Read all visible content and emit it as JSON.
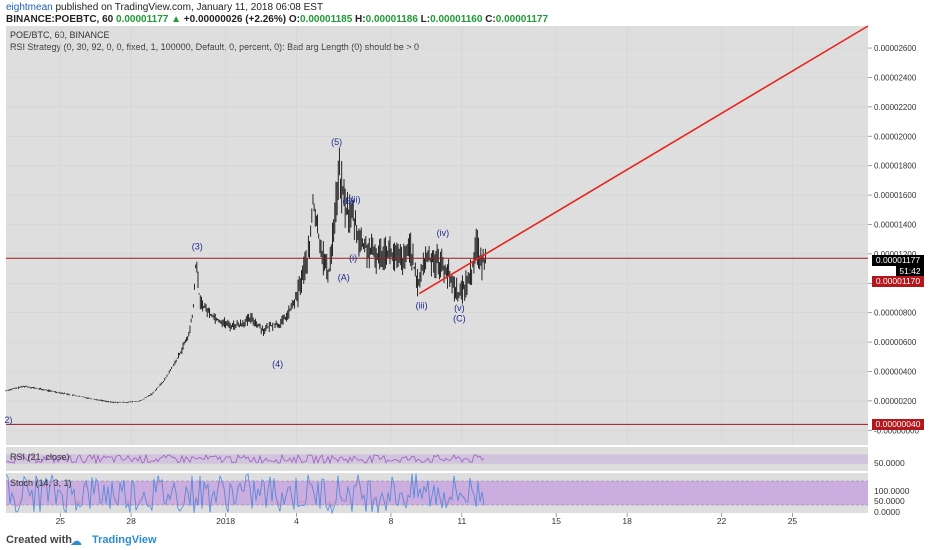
{
  "header": {
    "author": "eightmean",
    "published_text": "published on TradingView.com, January 11, 2018 06:08 EST",
    "symbol": "BINANCE:POEBTC, 60",
    "last": "0.00001177",
    "change_arrow": "▲",
    "change": "+0.00000026 (+2.26%)",
    "open_label": "O:",
    "open": "0.00001185",
    "high_label": "H:",
    "high": "0.00001186",
    "low_label": "L:",
    "low": "0.00001160",
    "close_label": "C:",
    "close": "0.00001177"
  },
  "chart_info": {
    "title": "POE/BTC, 60, BINANCE",
    "strategy_error": "RSI Strategy (0, 30, 92, 0, 0, fixed, 1, 100000, Default, 0, percent, 0): Bad arg Length (0) should be > 0"
  },
  "price_badges": {
    "current": "0.00001177",
    "countdown": "51:42",
    "level_upper": "0.00001170",
    "level_lower": "0.00000040"
  },
  "indicators": {
    "rsi_label": "RSI (21, close)",
    "rsi_tick": "50.0000",
    "stoch_label": "Stoch (14, 3, 1)",
    "stoch_ticks": [
      "100.0000",
      "50.0000",
      "0.0000"
    ]
  },
  "footer": {
    "created": "Created with",
    "brand": "TradingView"
  },
  "colors": {
    "panel_bg": "#dedede",
    "trendline": "#e8241c",
    "wave_label": "#1f2a8c",
    "rsi_band": "#cfc2dd",
    "stoch_band": "#c9a8df",
    "rsi_line": "#9f5cc0",
    "stoch_k": "#4a8de0",
    "stoch_d": "#e08bb8"
  },
  "chart_data": {
    "type": "candlestick",
    "title": "POE/BTC, 60, BINANCE",
    "x_tick_labels": [
      "25",
      "28",
      "2018",
      "4",
      "8",
      "11",
      "15",
      "18",
      "22",
      "25"
    ],
    "y_tick_labels": [
      "0.00002600",
      "0.00002400",
      "0.00002200",
      "0.00002000",
      "0.00001800",
      "0.00001600",
      "0.00001400",
      "0.00001200",
      "0.00001000",
      "0.00000800",
      "0.00000600",
      "0.00000400",
      "0.00000200",
      "-0.00000000"
    ],
    "y_ticks": [
      2.6e-05,
      2.4e-05,
      2.2e-05,
      2e-05,
      1.8e-05,
      1.6e-05,
      1.4e-05,
      1.2e-05,
      1e-05,
      8e-06,
      6e-06,
      4e-06,
      2e-06,
      0
    ],
    "x_tick_days": [
      -7,
      -4,
      0,
      3,
      7,
      10,
      14,
      17,
      21,
      24
    ],
    "xlim_days": [
      -9.3,
      27.2
    ],
    "ylim": [
      -1e-06,
      2.75e-05
    ],
    "price_series": {
      "days": [
        -9.3,
        -8.5,
        -7.5,
        -6.5,
        -5.5,
        -4.8,
        -4.2,
        -3.6,
        -3.1,
        -2.6,
        -2.3,
        -2.0,
        -1.8,
        -1.55,
        -1.35,
        -1.25,
        -1.1,
        -0.7,
        -0.3,
        0.2,
        0.6,
        1.1,
        1.6,
        2.0,
        2.3,
        2.6,
        3.0,
        3.3,
        3.55,
        3.7,
        3.85,
        4.1,
        4.35,
        4.6,
        4.8,
        5.1,
        5.4,
        5.7,
        6.0,
        6.4,
        6.8,
        7.2,
        7.6,
        7.8,
        8.1,
        8.5,
        8.9,
        9.3,
        9.6,
        9.9,
        10.2,
        10.45,
        10.6,
        10.8,
        11.0
      ],
      "close": [
        2.7e-06,
        3e-06,
        2.7e-06,
        2.4e-06,
        2.1e-06,
        1.9e-06,
        1.9e-06,
        2e-06,
        2.5e-06,
        3.4e-06,
        4.2e-06,
        5e-06,
        5.7e-06,
        6.5e-06,
        8.5e-06,
        1.18e-05,
        8.8e-06,
        8e-06,
        7.5e-06,
        7.1e-06,
        7.2e-06,
        7.6e-06,
        6.8e-06,
        7.2e-06,
        7.2e-06,
        7.8e-06,
        9e-06,
        1.08e-05,
        1.22e-05,
        1.57e-05,
        1.4e-05,
        1.2e-05,
        1.05e-05,
        1.42e-05,
        1.75e-05,
        1.5e-05,
        1.45e-05,
        1.28e-05,
        1.23e-05,
        1.18e-05,
        1.23e-05,
        1.17e-05,
        1.15e-05,
        1.28e-05,
        9.8e-06,
        1.18e-05,
        1.16e-05,
        1.1e-05,
        1e-05,
        9.2e-06,
        1e-05,
        1.09e-05,
        1.3e-05,
        1.12e-05,
        1.18e-05
      ]
    },
    "horizontal_levels": [
      1.17e-05,
      4e-07
    ],
    "trendline": {
      "from": {
        "day": 8.2,
        "price": 9.3e-06
      },
      "to": {
        "day": 27.2,
        "price": 2.75e-05
      }
    },
    "wave_labels": [
      {
        "text": "(3)",
        "day": -1.2,
        "price": 1.23e-05
      },
      {
        "text": "(4)",
        "day": 2.2,
        "price": 4.3e-06
      },
      {
        "text": "(5)",
        "day": 4.7,
        "price": 1.94e-05
      },
      {
        "text": "(B)",
        "day": 5.2,
        "price": 1.54e-05
      },
      {
        "text": "(ii)",
        "day": 5.5,
        "price": 1.55e-05
      },
      {
        "text": "(i)",
        "day": 5.4,
        "price": 1.15e-05
      },
      {
        "text": "(A)",
        "day": 5.0,
        "price": 1.02e-05
      },
      {
        "text": "(iv)",
        "day": 9.2,
        "price": 1.32e-05
      },
      {
        "text": "(iii)",
        "day": 8.3,
        "price": 8.3e-06
      },
      {
        "text": "(v)",
        "day": 9.9,
        "price": 8.1e-06
      },
      {
        "text": "(C)",
        "day": 9.9,
        "price": 7.4e-06
      },
      {
        "text": "2)",
        "day": -9.2,
        "price": 5e-07
      }
    ]
  }
}
